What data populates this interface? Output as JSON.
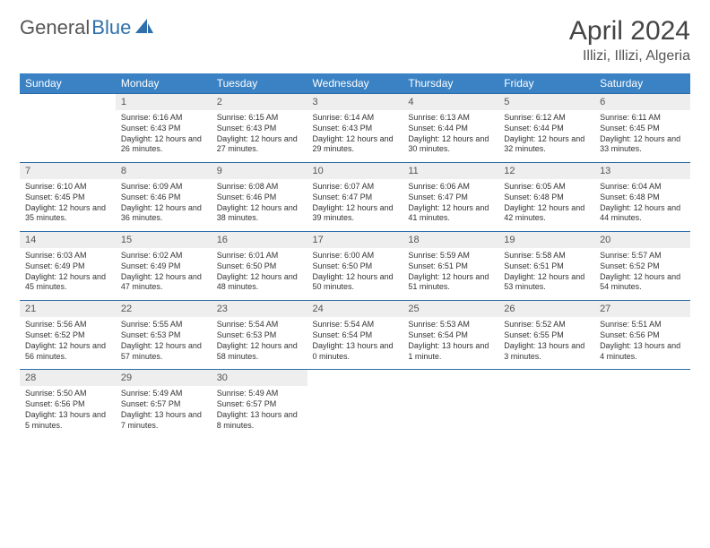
{
  "brand": {
    "part1": "General",
    "part2": "Blue"
  },
  "title": "April 2024",
  "location": "Illizi, Illizi, Algeria",
  "theme": {
    "header_bg": "#3a82c4",
    "header_text": "#ffffff",
    "rule_color": "#2b6aa6",
    "daynum_bg": "#eeeeee",
    "brand_blue": "#2f6fab"
  },
  "weekdays": [
    "Sunday",
    "Monday",
    "Tuesday",
    "Wednesday",
    "Thursday",
    "Friday",
    "Saturday"
  ],
  "weeks": [
    [
      null,
      {
        "n": "1",
        "sr": "6:16 AM",
        "ss": "6:43 PM",
        "dl": "12 hours and 26 minutes."
      },
      {
        "n": "2",
        "sr": "6:15 AM",
        "ss": "6:43 PM",
        "dl": "12 hours and 27 minutes."
      },
      {
        "n": "3",
        "sr": "6:14 AM",
        "ss": "6:43 PM",
        "dl": "12 hours and 29 minutes."
      },
      {
        "n": "4",
        "sr": "6:13 AM",
        "ss": "6:44 PM",
        "dl": "12 hours and 30 minutes."
      },
      {
        "n": "5",
        "sr": "6:12 AM",
        "ss": "6:44 PM",
        "dl": "12 hours and 32 minutes."
      },
      {
        "n": "6",
        "sr": "6:11 AM",
        "ss": "6:45 PM",
        "dl": "12 hours and 33 minutes."
      }
    ],
    [
      {
        "n": "7",
        "sr": "6:10 AM",
        "ss": "6:45 PM",
        "dl": "12 hours and 35 minutes."
      },
      {
        "n": "8",
        "sr": "6:09 AM",
        "ss": "6:46 PM",
        "dl": "12 hours and 36 minutes."
      },
      {
        "n": "9",
        "sr": "6:08 AM",
        "ss": "6:46 PM",
        "dl": "12 hours and 38 minutes."
      },
      {
        "n": "10",
        "sr": "6:07 AM",
        "ss": "6:47 PM",
        "dl": "12 hours and 39 minutes."
      },
      {
        "n": "11",
        "sr": "6:06 AM",
        "ss": "6:47 PM",
        "dl": "12 hours and 41 minutes."
      },
      {
        "n": "12",
        "sr": "6:05 AM",
        "ss": "6:48 PM",
        "dl": "12 hours and 42 minutes."
      },
      {
        "n": "13",
        "sr": "6:04 AM",
        "ss": "6:48 PM",
        "dl": "12 hours and 44 minutes."
      }
    ],
    [
      {
        "n": "14",
        "sr": "6:03 AM",
        "ss": "6:49 PM",
        "dl": "12 hours and 45 minutes."
      },
      {
        "n": "15",
        "sr": "6:02 AM",
        "ss": "6:49 PM",
        "dl": "12 hours and 47 minutes."
      },
      {
        "n": "16",
        "sr": "6:01 AM",
        "ss": "6:50 PM",
        "dl": "12 hours and 48 minutes."
      },
      {
        "n": "17",
        "sr": "6:00 AM",
        "ss": "6:50 PM",
        "dl": "12 hours and 50 minutes."
      },
      {
        "n": "18",
        "sr": "5:59 AM",
        "ss": "6:51 PM",
        "dl": "12 hours and 51 minutes."
      },
      {
        "n": "19",
        "sr": "5:58 AM",
        "ss": "6:51 PM",
        "dl": "12 hours and 53 minutes."
      },
      {
        "n": "20",
        "sr": "5:57 AM",
        "ss": "6:52 PM",
        "dl": "12 hours and 54 minutes."
      }
    ],
    [
      {
        "n": "21",
        "sr": "5:56 AM",
        "ss": "6:52 PM",
        "dl": "12 hours and 56 minutes."
      },
      {
        "n": "22",
        "sr": "5:55 AM",
        "ss": "6:53 PM",
        "dl": "12 hours and 57 minutes."
      },
      {
        "n": "23",
        "sr": "5:54 AM",
        "ss": "6:53 PM",
        "dl": "12 hours and 58 minutes."
      },
      {
        "n": "24",
        "sr": "5:54 AM",
        "ss": "6:54 PM",
        "dl": "13 hours and 0 minutes."
      },
      {
        "n": "25",
        "sr": "5:53 AM",
        "ss": "6:54 PM",
        "dl": "13 hours and 1 minute."
      },
      {
        "n": "26",
        "sr": "5:52 AM",
        "ss": "6:55 PM",
        "dl": "13 hours and 3 minutes."
      },
      {
        "n": "27",
        "sr": "5:51 AM",
        "ss": "6:56 PM",
        "dl": "13 hours and 4 minutes."
      }
    ],
    [
      {
        "n": "28",
        "sr": "5:50 AM",
        "ss": "6:56 PM",
        "dl": "13 hours and 5 minutes."
      },
      {
        "n": "29",
        "sr": "5:49 AM",
        "ss": "6:57 PM",
        "dl": "13 hours and 7 minutes."
      },
      {
        "n": "30",
        "sr": "5:49 AM",
        "ss": "6:57 PM",
        "dl": "13 hours and 8 minutes."
      },
      null,
      null,
      null,
      null
    ]
  ],
  "labels": {
    "sunrise": "Sunrise:",
    "sunset": "Sunset:",
    "daylight": "Daylight:"
  }
}
